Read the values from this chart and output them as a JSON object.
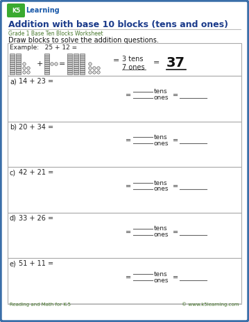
{
  "title": "Addition with base 10 blocks (tens and ones)",
  "subtitle": "Grade 1 Base Ten Blocks Worksheet",
  "instruction": "Draw blocks to solve the addition questions.",
  "bg_color": "#f0f4f8",
  "page_bg": "#ffffff",
  "border_color": "#3a6ea8",
  "title_color": "#1a3a8a",
  "subtitle_color": "#4a7a30",
  "body_color": "#111111",
  "example_label": "Example:   25 + 12 =",
  "example_tens": "3 tens",
  "example_ones": "7 ones",
  "example_answer": "37",
  "problems": [
    {
      "label": "a)",
      "eq": "14 + 23 ="
    },
    {
      "label": "b)",
      "eq": "20 + 34 ="
    },
    {
      "label": "c)",
      "eq": "42 + 21 ="
    },
    {
      "label": "d)",
      "eq": "33 + 26 ="
    },
    {
      "label": "e)",
      "eq": "51 + 11 ="
    }
  ],
  "footer_left": "Reading and Math for K-5",
  "footer_right": "© www.k5learning.com",
  "logo_text1": "K",
  "logo_text2": "5",
  "logo_text3": " Learning"
}
